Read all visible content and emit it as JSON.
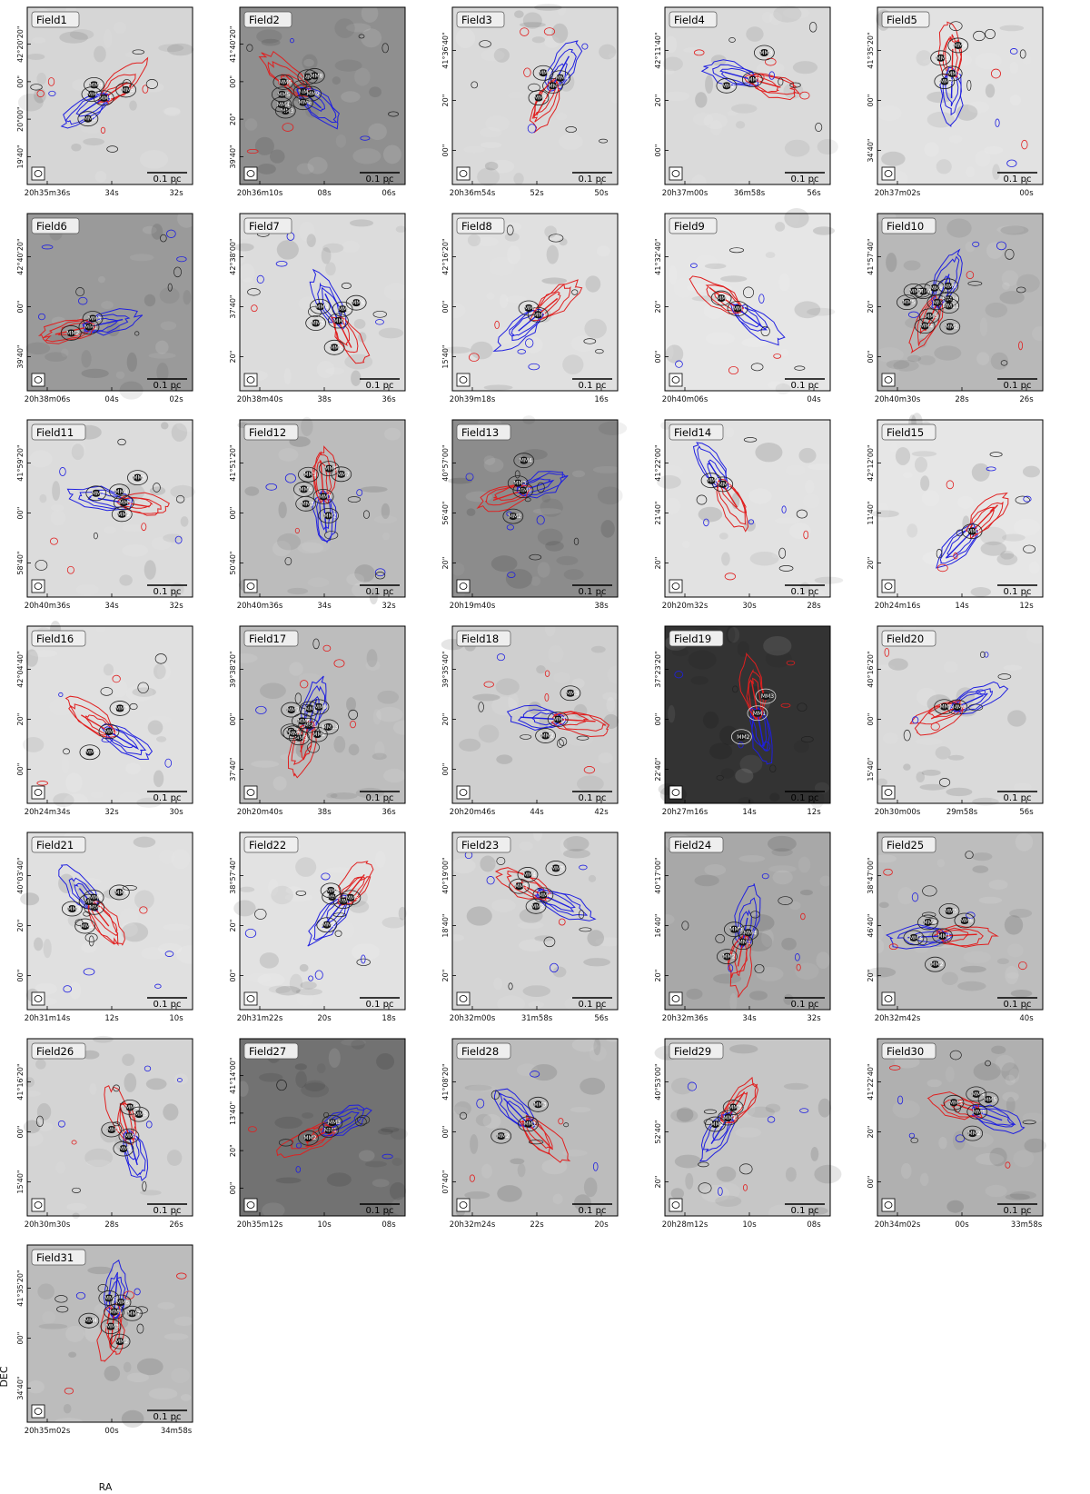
{
  "figure": {
    "xlabel": "RA",
    "ylabel": "DEC",
    "scalebar_label": "0.1 pc",
    "colors": {
      "blue_lobe": "#1f1fe0",
      "red_lobe": "#e01f1f",
      "contour": "#222222"
    }
  },
  "panels": [
    {
      "title": "Field1",
      "bg": "#d6d6d6",
      "y_ticks": [
        "42°20'20\"",
        "00\"",
        "20\"00\"",
        "19'40\""
      ],
      "x_ticks": [
        "20h35m36s",
        "34s",
        "32s"
      ],
      "cores": [
        "MM1",
        "MM2",
        "MM3",
        "MM4",
        "MM5"
      ]
    },
    {
      "title": "Field2",
      "bg": "#8f8f8f",
      "y_ticks": [
        "41°40'20\"",
        "00\"",
        "20\"",
        "39'40\""
      ],
      "x_ticks": [
        "20h36m10s",
        "08s",
        "06s"
      ],
      "cores": [
        "MM1",
        "MM2",
        "MM3",
        "MM4",
        "MM5",
        "MM6",
        "MM7",
        "MM8",
        "MM9"
      ]
    },
    {
      "title": "Field3",
      "bg": "#dadada",
      "y_ticks": [
        "41°36'40\"",
        "20\"",
        "00\""
      ],
      "x_ticks": [
        "20h36m54s",
        "52s",
        "50s"
      ],
      "cores": [
        "MM1",
        "MM2",
        "MM3",
        "MM4"
      ]
    },
    {
      "title": "Field4",
      "bg": "#dadada",
      "y_ticks": [
        "42°11'40\"",
        "20\"",
        "00\""
      ],
      "x_ticks": [
        "20h37m00s",
        "36m58s",
        "56s"
      ],
      "cores": [
        "MM1",
        "MM2",
        "MM3"
      ]
    },
    {
      "title": "Field5",
      "bg": "#e2e2e2",
      "y_ticks": [
        "41°35'20\"",
        "00\"",
        "34'40\""
      ],
      "x_ticks": [
        "20h37m02s",
        "00s"
      ],
      "cores": [
        "MM1",
        "MM2",
        "MM3",
        "MM4"
      ]
    },
    {
      "title": "Field6",
      "bg": "#9a9a9a",
      "y_ticks": [
        "42°40'20\"",
        "00\"",
        "39'40\""
      ],
      "x_ticks": [
        "20h38m06s",
        "04s",
        "02s"
      ],
      "cores": [
        "MM1",
        "MM2",
        "MM3"
      ]
    },
    {
      "title": "Field7",
      "bg": "#dcdcdc",
      "y_ticks": [
        "42°38'00\"",
        "37'40\"",
        "20\""
      ],
      "x_ticks": [
        "20h38m40s",
        "38s",
        "36s"
      ],
      "cores": [
        "MM1",
        "MM2",
        "MM3",
        "MM4",
        "MM5",
        "MM6"
      ]
    },
    {
      "title": "Field8",
      "bg": "#e0e0e0",
      "y_ticks": [
        "42°16'20\"",
        "00\"",
        "15'40\""
      ],
      "x_ticks": [
        "20h39m18s",
        "16s"
      ],
      "cores": [
        "MM1",
        "MM2"
      ]
    },
    {
      "title": "Field9",
      "bg": "#e6e6e6",
      "y_ticks": [
        "41°32'40\"",
        "20\"",
        "00\""
      ],
      "x_ticks": [
        "20h40m06s",
        "04s"
      ],
      "cores": [
        "MM1",
        "MM2"
      ]
    },
    {
      "title": "Field10",
      "bg": "#b8b8b8",
      "y_ticks": [
        "41°57'40\"",
        "20\"",
        "00\""
      ],
      "x_ticks": [
        "20h40m30s",
        "28s",
        "26s"
      ],
      "cores": [
        "MM1",
        "MM2",
        "MM3",
        "MM4",
        "MM5",
        "MM6",
        "MM7",
        "MM8",
        "MM9",
        "MM10",
        "MM11"
      ]
    },
    {
      "title": "Field11",
      "bg": "#dcdcdc",
      "y_ticks": [
        "41°59'20\"",
        "00\"",
        "58'40\""
      ],
      "x_ticks": [
        "20h40m36s",
        "34s",
        "32s"
      ],
      "cores": [
        "MM1",
        "MM2",
        "MM3",
        "MM4",
        "MM5"
      ]
    },
    {
      "title": "Field12",
      "bg": "#bcbcbc",
      "y_ticks": [
        "41°51'20\"",
        "00\"",
        "50'40\""
      ],
      "x_ticks": [
        "20h40m36s",
        "34s",
        "32s"
      ],
      "cores": [
        "MM1",
        "MM2",
        "MM3",
        "MM4",
        "MM5",
        "MM6",
        "MM7"
      ]
    },
    {
      "title": "Field13",
      "bg": "#8c8c8c",
      "y_ticks": [
        "40°57'00\"",
        "56'40\"",
        "20\""
      ],
      "x_ticks": [
        "20h19m40s",
        "38s"
      ],
      "cores": [
        "MM1",
        "MM2",
        "MM3",
        "MM4"
      ]
    },
    {
      "title": "Field14",
      "bg": "#e2e2e2",
      "y_ticks": [
        "41°22'00\"",
        "21'40\"",
        "20\""
      ],
      "x_ticks": [
        "20h20m32s",
        "30s",
        "28s"
      ],
      "cores": [
        "MM1",
        "MM2"
      ]
    },
    {
      "title": "Field15",
      "bg": "#e6e6e6",
      "y_ticks": [
        "42°12'00\"",
        "11'40\"",
        "20\""
      ],
      "x_ticks": [
        "20h24m16s",
        "14s",
        "12s"
      ],
      "cores": [
        "MM1"
      ]
    },
    {
      "title": "Field16",
      "bg": "#e0e0e0",
      "y_ticks": [
        "42°04'40\"",
        "20\"",
        "00\""
      ],
      "x_ticks": [
        "20h24m34s",
        "32s",
        "30s"
      ],
      "cores": [
        "MM1",
        "MM2",
        "MM3"
      ]
    },
    {
      "title": "Field17",
      "bg": "#bdbdbd",
      "y_ticks": [
        "39°38'20\"",
        "00\"",
        "37'40\""
      ],
      "x_ticks": [
        "20h20m40s",
        "38s",
        "36s"
      ],
      "cores": [
        "MM1",
        "MM2",
        "MM3",
        "MM4",
        "MM5",
        "MM6",
        "MM7",
        "MM8",
        "MM9",
        "MM13"
      ]
    },
    {
      "title": "Field18",
      "bg": "#cfcfcf",
      "y_ticks": [
        "39°35'40\"",
        "20\"",
        "00\""
      ],
      "x_ticks": [
        "20h20m46s",
        "44s",
        "42s"
      ],
      "cores": [
        "MM1",
        "MM2",
        "MM3"
      ]
    },
    {
      "title": "Field19",
      "bg": "#333333",
      "y_ticks": [
        "37°23'20\"",
        "00\"",
        "22'40\""
      ],
      "x_ticks": [
        "20h27m16s",
        "14s",
        "12s"
      ],
      "cores": [
        "MM1",
        "MM2",
        "MM3"
      ]
    },
    {
      "title": "Field20",
      "bg": "#dadada",
      "y_ticks": [
        "40°16'20\"",
        "00\"",
        "15'40\""
      ],
      "x_ticks": [
        "20h30m00s",
        "29m58s",
        "56s"
      ],
      "cores": [
        "MM1",
        "MM2"
      ]
    },
    {
      "title": "Field21",
      "bg": "#e0e0e0",
      "y_ticks": [
        "40°03'40\"",
        "20\"",
        "00\""
      ],
      "x_ticks": [
        "20h31m14s",
        "12s",
        "10s"
      ],
      "cores": [
        "MM1",
        "MM2",
        "MM3",
        "MM4",
        "MM5",
        "MM6"
      ]
    },
    {
      "title": "Field22",
      "bg": "#e2e2e2",
      "y_ticks": [
        "38°57'40\"",
        "20\"",
        "00\""
      ],
      "x_ticks": [
        "20h31m22s",
        "20s",
        "18s"
      ],
      "cores": [
        "MM1",
        "MM2",
        "MM3",
        "MM4",
        "MM5"
      ]
    },
    {
      "title": "Field23",
      "bg": "#d4d4d4",
      "y_ticks": [
        "40°19'00\"",
        "18'40\"",
        "20\""
      ],
      "x_ticks": [
        "20h32m00s",
        "31m58s",
        "56s"
      ],
      "cores": [
        "MM1",
        "MM2",
        "MM3",
        "MM4",
        "MM5"
      ]
    },
    {
      "title": "Field24",
      "bg": "#a8a8a8",
      "y_ticks": [
        "40°17'00\"",
        "16'40\"",
        "20\""
      ],
      "x_ticks": [
        "20h32m36s",
        "34s",
        "32s"
      ],
      "cores": [
        "MM1",
        "MM2",
        "MM3",
        "MM4"
      ]
    },
    {
      "title": "Field25",
      "bg": "#bdbdbd",
      "y_ticks": [
        "38°47'00\"",
        "46'40\"",
        "20\""
      ],
      "x_ticks": [
        "20h32m42s",
        "40s"
      ],
      "cores": [
        "MM1",
        "MM2",
        "MM3",
        "MM4",
        "MM5",
        "MM6"
      ]
    },
    {
      "title": "Field26",
      "bg": "#d4d4d4",
      "y_ticks": [
        "41°16'20\"",
        "00\"",
        "15'40\""
      ],
      "x_ticks": [
        "20h30m30s",
        "28s",
        "26s"
      ],
      "cores": [
        "MM1",
        "MM2",
        "MM3",
        "MM4",
        "MM5"
      ]
    },
    {
      "title": "Field27",
      "bg": "#727272",
      "y_ticks": [
        "41°14'00\"",
        "13'40\"",
        "20\"",
        "00\""
      ],
      "x_ticks": [
        "20h35m12s",
        "10s",
        "08s"
      ],
      "cores": [
        "MM1",
        "MM2",
        "MM3"
      ]
    },
    {
      "title": "Field28",
      "bg": "#bcbcbc",
      "y_ticks": [
        "41°08'20\"",
        "00\"",
        "07'40\""
      ],
      "x_ticks": [
        "20h32m24s",
        "22s",
        "20s"
      ],
      "cores": [
        "MM1",
        "MM2",
        "MM3"
      ]
    },
    {
      "title": "Field29",
      "bg": "#c6c6c6",
      "y_ticks": [
        "40°53'00\"",
        "52'40\"",
        "20\""
      ],
      "x_ticks": [
        "20h28m12s",
        "10s",
        "08s"
      ],
      "cores": [
        "MM1",
        "MM2",
        "MM3"
      ]
    },
    {
      "title": "Field30",
      "bg": "#b0b0b0",
      "y_ticks": [
        "41°22'40\"",
        "20\"",
        "00\""
      ],
      "x_ticks": [
        "20h34m02s",
        "00s",
        "33m58s"
      ],
      "cores": [
        "MM1",
        "MM2",
        "MM3",
        "MM4",
        "MM5"
      ]
    },
    {
      "title": "Field31",
      "bg": "#bcbcbc",
      "y_ticks": [
        "41°35'20\"",
        "00\"",
        "34'40\""
      ],
      "x_ticks": [
        "20h35m02s",
        "00s",
        "34m58s"
      ],
      "cores": [
        "MM1",
        "MM2",
        "MM3",
        "MM4",
        "MM5",
        "MM6",
        "MM7"
      ]
    }
  ]
}
